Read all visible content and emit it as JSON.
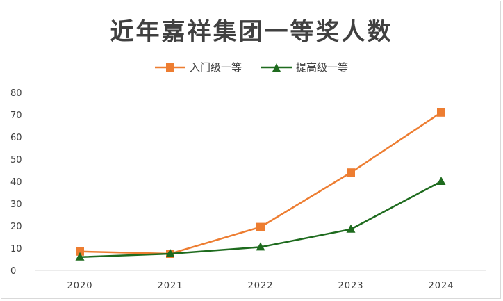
{
  "chart_data": {
    "type": "line",
    "title": "近年嘉祥集团一等奖人数",
    "categories": [
      "2020",
      "2021",
      "2022",
      "2023",
      "2024"
    ],
    "series": [
      {
        "name": "入门级一等",
        "values": [
          8.5,
          7.5,
          19.5,
          44,
          71
        ],
        "color": "#ED7D31",
        "marker": "square"
      },
      {
        "name": "提高级一等",
        "values": [
          6,
          7.5,
          10.5,
          18.5,
          40
        ],
        "color": "#1E6B1E",
        "marker": "triangle"
      }
    ],
    "yticks": [
      "0",
      "10",
      "20",
      "30",
      "40",
      "50",
      "60",
      "70",
      "80"
    ],
    "ylim": [
      0,
      80
    ],
    "grid": false,
    "legend_position": "top"
  }
}
